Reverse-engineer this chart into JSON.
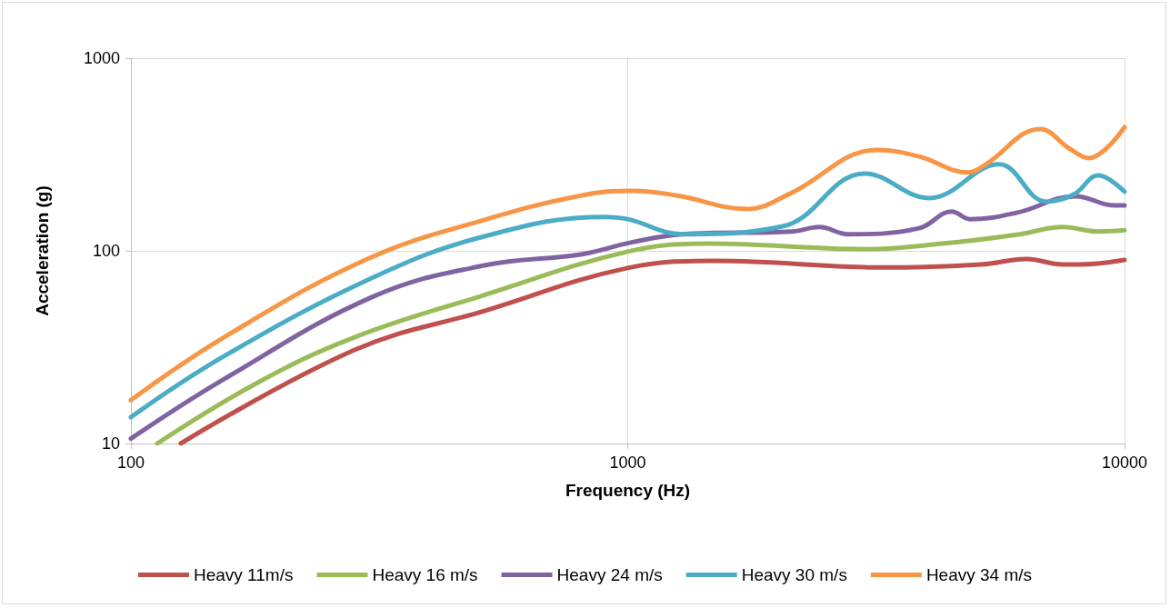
{
  "chart_data": {
    "type": "line",
    "xlabel": "Frequency (Hz)",
    "ylabel": "Acceleration (g)",
    "log": "xy",
    "xlim": [
      100,
      10000
    ],
    "xticks": [
      100,
      1000,
      10000
    ],
    "ylim": [
      10,
      1000
    ],
    "yticks": [
      10,
      100,
      1000
    ],
    "grid": true,
    "legend": "bottom",
    "marker": "none",
    "line_style": "solid",
    "series": [
      {
        "name": "Heavy 11m/s",
        "color": "#c0504d",
        "x": [
          126,
          282,
          515,
          1000,
          1496,
          3328,
          5140,
          6347,
          7511,
          8143,
          10000
        ],
        "values": [
          10,
          30.6,
          48.8,
          81.5,
          88.7,
          82,
          85,
          90.7,
          85,
          85,
          89.7
        ]
      },
      {
        "name": "Heavy 16 m/s",
        "color": "#9bbb59",
        "x": [
          113,
          180,
          282,
          515,
          1000,
          1452,
          2998,
          4436,
          6163,
          7511,
          8851,
          10000
        ],
        "values": [
          10,
          20.7,
          35.6,
          59,
          99,
          109,
          102,
          110,
          122,
          133,
          126,
          128
        ]
      },
      {
        "name": "Heavy 24 m/s",
        "color": "#8064a2",
        "x": [
          100,
          154,
          308,
          515,
          809,
          1023,
          1291,
          2149,
          2428,
          2779,
          3857,
          4490,
          4886,
          6085,
          7965,
          9550,
          10000
        ],
        "values": [
          10.6,
          21.6,
          58,
          84,
          96,
          111,
          122,
          126,
          133,
          122,
          131,
          160,
          146,
          158,
          192,
          172,
          172
        ]
      },
      {
        "name": "Heavy 30 m/s",
        "color": "#4bacc6",
        "x": [
          100,
          154,
          308,
          515,
          898,
          1000,
          1291,
          2051,
          2998,
          4044,
          5590,
          6962,
          7900,
          8851,
          10000
        ],
        "values": [
          13.7,
          28.4,
          73,
          119,
          150,
          146,
          122,
          134,
          252,
          188,
          281,
          180,
          196,
          246,
          203
        ]
      },
      {
        "name": "Heavy 34 m/s",
        "color": "#f79646",
        "x": [
          100,
          154,
          299,
          515,
          809,
          1023,
          1253,
          1741,
          2121,
          3179,
          3857,
          4843,
          5227,
          6761,
          7730,
          8450,
          10000
        ],
        "values": [
          16.8,
          35.6,
          90.7,
          145,
          194,
          205,
          194,
          165,
          198,
          334,
          309,
          255,
          278,
          429,
          341,
          303,
          438
        ]
      }
    ]
  }
}
